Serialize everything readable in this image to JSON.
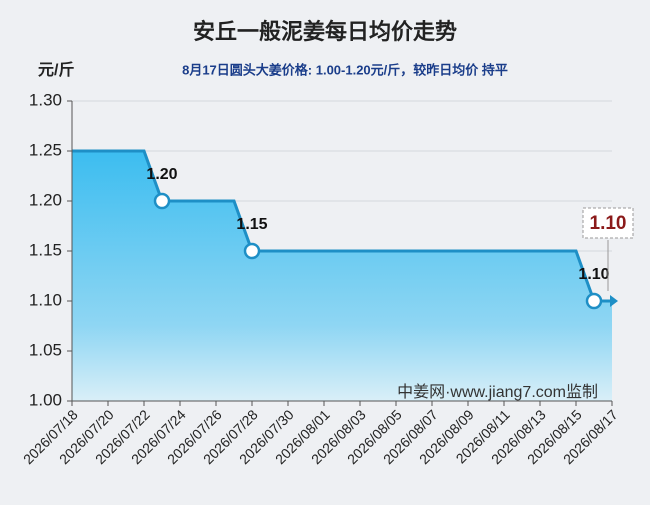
{
  "chart_data": {
    "type": "area",
    "title": "安丘一般泥姜每日均价走势",
    "subtitle": "8月17日圆头大姜价格: 1.00-1.20元/斤，较昨日均价 持平",
    "y_unit": "元/斤",
    "watermark": "中姜网·www.jiang7.com监制",
    "latest_label": "1.10",
    "categories": [
      "2026/07/18",
      null,
      "2026/07/20",
      null,
      "2026/07/22",
      null,
      "2026/07/24",
      null,
      "2026/07/26",
      null,
      "2026/07/28",
      null,
      "2026/07/30",
      null,
      "2026/08/01",
      null,
      "2026/08/03",
      null,
      "2026/08/05",
      null,
      "2026/08/07",
      null,
      "2026/08/09",
      null,
      "2026/08/11",
      null,
      "2026/08/13",
      null,
      "2026/08/15",
      null,
      "2026/08/17"
    ],
    "values": [
      1.25,
      1.25,
      1.25,
      1.25,
      1.25,
      1.2,
      1.2,
      1.2,
      1.2,
      1.2,
      1.15,
      1.15,
      1.15,
      1.15,
      1.15,
      1.15,
      1.15,
      1.15,
      1.15,
      1.15,
      1.15,
      1.15,
      1.15,
      1.15,
      1.15,
      1.15,
      1.15,
      1.15,
      1.15,
      1.1,
      1.1
    ],
    "value_labels": [
      null,
      null,
      null,
      null,
      null,
      "1.20",
      null,
      null,
      null,
      null,
      "1.15",
      null,
      null,
      null,
      null,
      null,
      null,
      null,
      null,
      null,
      null,
      null,
      null,
      null,
      null,
      null,
      null,
      null,
      null,
      "1.10",
      null
    ],
    "color": "#1e8fc6",
    "ylim": [
      1.0,
      1.3
    ],
    "yticks": [
      {
        "value": 1.0,
        "label": "1.00"
      },
      {
        "value": 1.05,
        "label": "1.05"
      },
      {
        "value": 1.1,
        "label": "1.10"
      },
      {
        "value": 1.15,
        "label": "1.15"
      },
      {
        "value": 1.2,
        "label": "1.20"
      },
      {
        "value": 1.25,
        "label": "1.25"
      },
      {
        "value": 1.3,
        "label": "1.30"
      }
    ],
    "grid": true
  }
}
